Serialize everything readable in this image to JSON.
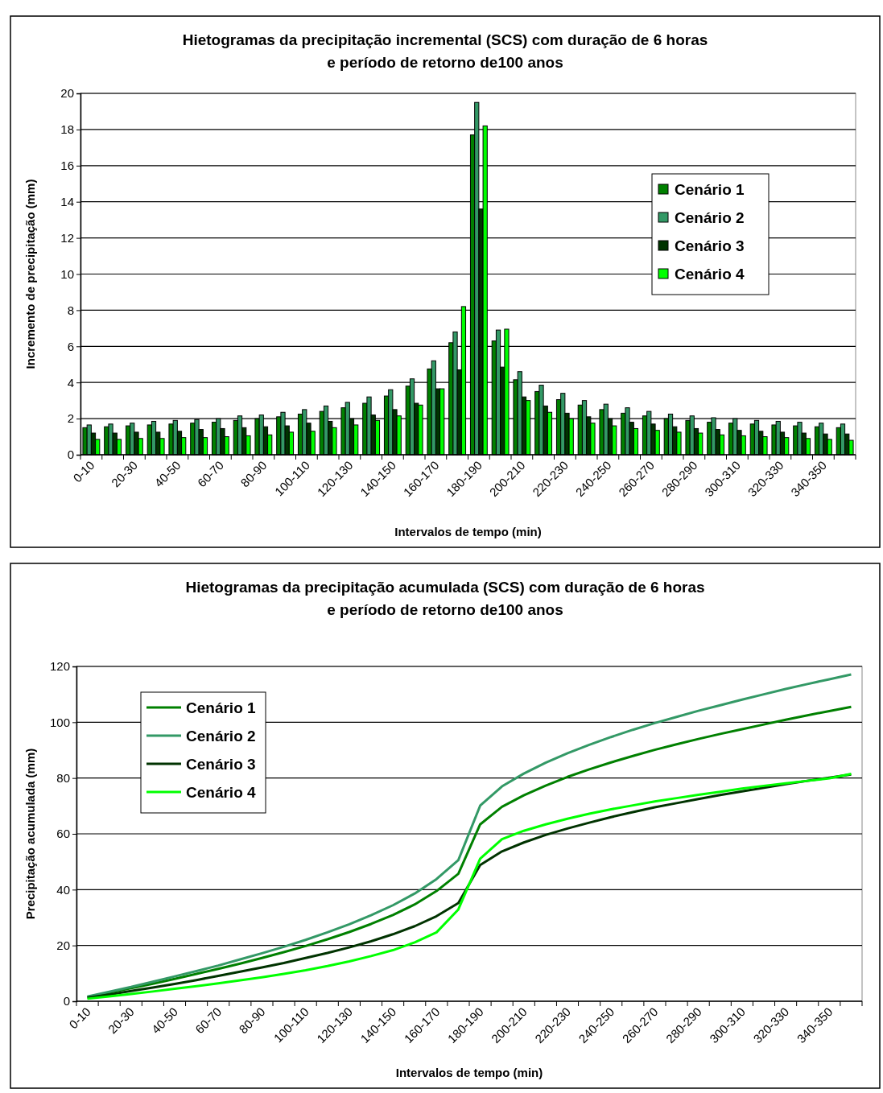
{
  "chart_data": [
    {
      "type": "bar",
      "title": "Hietogramas da precipitação incremental (SCS) com duração de 6 horas e período de retorno de100 anos",
      "xlabel": "Intervalos de tempo (min)",
      "ylabel": "Incremento de precipitação (mm)",
      "categories": [
        "0-10",
        null,
        "20-30",
        null,
        "40-50",
        null,
        "60-70",
        null,
        "80-90",
        null,
        "100-110",
        null,
        "120-130",
        null,
        "140-150",
        null,
        "160-170",
        null,
        "180-190",
        null,
        "200-210",
        null,
        "220-230",
        null,
        "240-250",
        null,
        "260-270",
        null,
        "280-290",
        null,
        "300-310",
        null,
        "320-330",
        null,
        "340-350",
        null
      ],
      "ylim": [
        0,
        20
      ],
      "yticks": [
        0,
        2,
        4,
        6,
        8,
        10,
        12,
        14,
        16,
        18,
        20
      ],
      "grid": "y",
      "legend": "top right",
      "series": [
        {
          "name": "Cenário 1",
          "color": "#008000",
          "values": [
            1.5,
            1.55,
            1.6,
            1.65,
            1.7,
            1.75,
            1.8,
            1.9,
            2.0,
            2.1,
            2.25,
            2.4,
            2.6,
            2.85,
            3.25,
            3.8,
            4.75,
            6.2,
            17.7,
            6.3,
            4.15,
            3.5,
            3.05,
            2.75,
            2.5,
            2.3,
            2.15,
            2.0,
            1.9,
            1.8,
            1.75,
            1.7,
            1.65,
            1.6,
            1.55,
            1.5
          ]
        },
        {
          "name": "Cenário 2",
          "color": "#339966",
          "values": [
            1.65,
            1.7,
            1.75,
            1.85,
            1.9,
            1.95,
            2.0,
            2.15,
            2.2,
            2.35,
            2.5,
            2.7,
            2.9,
            3.2,
            3.6,
            4.2,
            5.2,
            6.8,
            19.5,
            6.9,
            4.6,
            3.85,
            3.4,
            3.0,
            2.8,
            2.6,
            2.4,
            2.25,
            2.15,
            2.05,
            2.0,
            1.9,
            1.85,
            1.8,
            1.75,
            1.7
          ]
        },
        {
          "name": "Cenário 3",
          "color": "#003300",
          "values": [
            1.2,
            1.2,
            1.25,
            1.25,
            1.3,
            1.4,
            1.45,
            1.5,
            1.55,
            1.6,
            1.75,
            1.85,
            2.0,
            2.2,
            2.5,
            2.85,
            3.65,
            4.7,
            13.6,
            4.85,
            3.2,
            2.7,
            2.3,
            2.1,
            2.0,
            1.8,
            1.7,
            1.55,
            1.45,
            1.4,
            1.35,
            1.3,
            1.25,
            1.2,
            1.15,
            1.15
          ]
        },
        {
          "name": "Cenário 4",
          "color": "#00ff00",
          "values": [
            0.85,
            0.85,
            0.9,
            0.9,
            0.95,
            0.95,
            1.0,
            1.05,
            1.1,
            1.25,
            1.3,
            1.5,
            1.65,
            1.9,
            2.15,
            2.75,
            3.65,
            8.2,
            18.2,
            6.95,
            3.0,
            2.35,
            2.0,
            1.75,
            1.6,
            1.45,
            1.35,
            1.25,
            1.2,
            1.1,
            1.05,
            1.0,
            0.95,
            0.9,
            0.85,
            0.8
          ]
        }
      ]
    },
    {
      "type": "line",
      "title": "Hietogramas da precipitação acumulada (SCS) com duração de 6 horas e período de retorno de100 anos",
      "xlabel": "Intervalos de tempo (min)",
      "ylabel": "Precipitação acumulada (mm)",
      "categories": [
        "0-10",
        null,
        "20-30",
        null,
        "40-50",
        null,
        "60-70",
        null,
        "80-90",
        null,
        "100-110",
        null,
        "120-130",
        null,
        "140-150",
        null,
        "160-170",
        null,
        "180-190",
        null,
        "200-210",
        null,
        "220-230",
        null,
        "240-250",
        null,
        "260-270",
        null,
        "280-290",
        null,
        "300-310",
        null,
        "320-330",
        null,
        "340-350",
        null
      ],
      "ylim": [
        0,
        120
      ],
      "yticks": [
        0,
        20,
        40,
        60,
        80,
        100,
        120
      ],
      "grid": "y",
      "legend": "top left",
      "marker": "none",
      "line_style": "solid",
      "series": [
        {
          "name": "Cenário 1",
          "color": "#008000",
          "values": [
            1.5,
            3.1,
            4.7,
            6.3,
            8.0,
            9.8,
            11.6,
            13.5,
            15.5,
            17.6,
            19.8,
            22.2,
            24.8,
            27.7,
            30.9,
            34.7,
            39.5,
            45.7,
            63.4,
            69.7,
            73.8,
            77.3,
            80.4,
            83.1,
            85.6,
            87.9,
            90.1,
            92.1,
            94.0,
            95.8,
            97.5,
            99.2,
            100.9,
            102.5,
            104.0,
            105.5
          ]
        },
        {
          "name": "Cenário 2",
          "color": "#339966",
          "values": [
            1.7,
            3.4,
            5.1,
            7.0,
            8.9,
            10.8,
            12.8,
            15.0,
            17.2,
            19.5,
            22.0,
            24.7,
            27.6,
            30.8,
            34.4,
            38.6,
            43.8,
            50.6,
            70.1,
            77.0,
            81.6,
            85.5,
            88.9,
            91.9,
            94.7,
            97.3,
            99.7,
            101.9,
            104.1,
            106.1,
            108.1,
            110.0,
            111.9,
            113.7,
            115.4,
            117.1
          ]
        },
        {
          "name": "Cenário 3",
          "color": "#003300",
          "values": [
            1.2,
            2.4,
            3.7,
            4.9,
            6.2,
            7.6,
            9.1,
            10.6,
            12.1,
            13.7,
            15.5,
            17.3,
            19.3,
            21.5,
            24.0,
            26.9,
            30.5,
            35.2,
            48.8,
            53.7,
            56.9,
            59.6,
            61.9,
            64.0,
            66.0,
            67.8,
            69.5,
            71.0,
            72.5,
            73.9,
            75.2,
            76.5,
            77.8,
            79.0,
            80.1,
            81.3
          ]
        },
        {
          "name": "Cenário 4",
          "color": "#00ff00",
          "values": [
            0.9,
            1.7,
            2.6,
            3.5,
            4.5,
            5.4,
            6.4,
            7.5,
            8.6,
            9.8,
            11.1,
            12.6,
            14.3,
            16.2,
            18.3,
            21.1,
            24.7,
            32.9,
            51.1,
            58.1,
            61.1,
            63.4,
            65.4,
            67.2,
            68.8,
            70.2,
            71.6,
            72.8,
            74.0,
            75.1,
            76.2,
            77.2,
            78.1,
            79.0,
            79.9,
            81.5
          ]
        }
      ]
    }
  ]
}
